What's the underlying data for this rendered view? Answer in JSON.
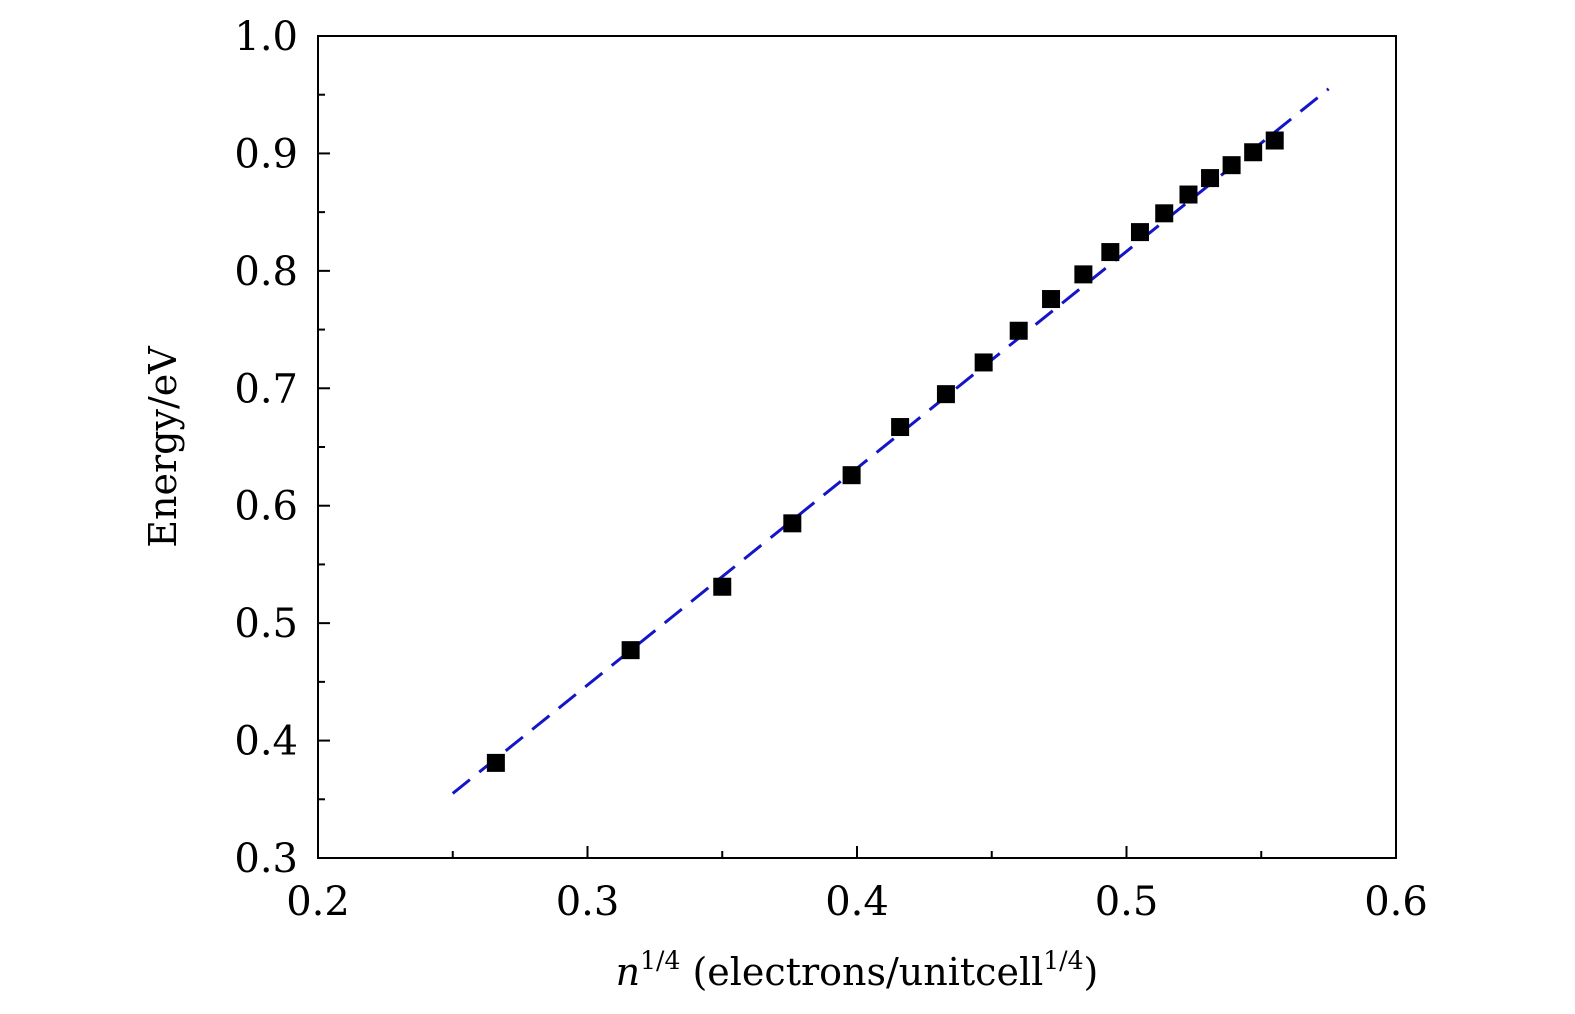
{
  "chart_data": {
    "type": "scatter",
    "title": "",
    "xlabel_main": "n",
    "xlabel_sup": "1/4",
    "xlabel_rest": " (electrons/unitcell",
    "xlabel_sup2": "1/4",
    "xlabel_close": ")",
    "ylabel": "Energy/eV",
    "xlim": [
      0.2,
      0.6
    ],
    "ylim": [
      0.3,
      1.0
    ],
    "x_ticks": [
      "0.2",
      "0.3",
      "0.4",
      "0.5",
      "0.6"
    ],
    "y_ticks": [
      "0.3",
      "0.4",
      "0.5",
      "0.6",
      "0.7",
      "0.8",
      "0.9",
      "1.0"
    ],
    "grid": false,
    "series": [
      {
        "marker": "square",
        "color": "#000000",
        "x": [
          0.266,
          0.316,
          0.35,
          0.376,
          0.398,
          0.416,
          0.433,
          0.447,
          0.46,
          0.472,
          0.484,
          0.494,
          0.505,
          0.514,
          0.523,
          0.531,
          0.539,
          0.547,
          0.555
        ],
        "y": [
          0.381,
          0.477,
          0.531,
          0.585,
          0.626,
          0.667,
          0.695,
          0.722,
          0.749,
          0.776,
          0.797,
          0.816,
          0.833,
          0.849,
          0.865,
          0.879,
          0.89,
          0.901,
          0.911
        ]
      }
    ],
    "fit_line": {
      "style": "dashed",
      "color": "#1515c8",
      "x": [
        0.25,
        0.575
      ],
      "y": [
        0.355,
        0.955
      ]
    }
  }
}
